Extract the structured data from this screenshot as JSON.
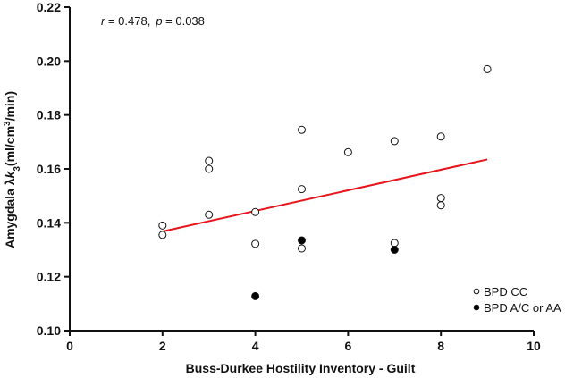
{
  "chart_data": {
    "type": "scatter",
    "xlabel": "Buss-Durkee Hostility Inventory - Guilt",
    "ylabel": "Amygdala λk3(ml/cm3/min)",
    "ylabel_parts": {
      "prefix": "Amygdala λ",
      "k": "k",
      "k_sub": "3",
      "unit_open": "(ml/cm",
      "unit_sup": "3",
      "unit_close": "/min)"
    },
    "xlim": [
      0,
      10
    ],
    "ylim": [
      0.1,
      0.22
    ],
    "xticks": [
      "0",
      "2",
      "4",
      "6",
      "8",
      "10"
    ],
    "yticks": [
      "0.10",
      "0.12",
      "0.14",
      "0.16",
      "0.18",
      "0.20",
      "0.22"
    ],
    "annotation": {
      "r_symbol": "r",
      "r_text": " = 0.478,",
      "p_symbol": "p",
      "p_text": " = 0.038"
    },
    "series": [
      {
        "name": "BPD CC",
        "marker": "open-circle",
        "points": [
          [
            2,
            0.139
          ],
          [
            2,
            0.1355
          ],
          [
            3,
            0.163
          ],
          [
            3,
            0.16
          ],
          [
            3,
            0.143
          ],
          [
            4,
            0.144
          ],
          [
            4,
            0.1322
          ],
          [
            5,
            0.1745
          ],
          [
            5,
            0.1525
          ],
          [
            5,
            0.1305
          ],
          [
            6,
            0.1662
          ],
          [
            7,
            0.1703
          ],
          [
            7,
            0.1325
          ],
          [
            8,
            0.172
          ],
          [
            8,
            0.1492
          ],
          [
            8,
            0.1465
          ],
          [
            9,
            0.197
          ]
        ]
      },
      {
        "name": "BPD A/C or AA",
        "marker": "filled-circle",
        "points": [
          [
            4,
            0.1128
          ],
          [
            5,
            0.1335
          ],
          [
            7,
            0.13
          ]
        ]
      }
    ],
    "fit_line": {
      "color": "#e8141b",
      "x": [
        2,
        9
      ],
      "y": [
        0.1368,
        0.1635
      ]
    },
    "legend": {
      "placement": "bottom-right"
    }
  }
}
